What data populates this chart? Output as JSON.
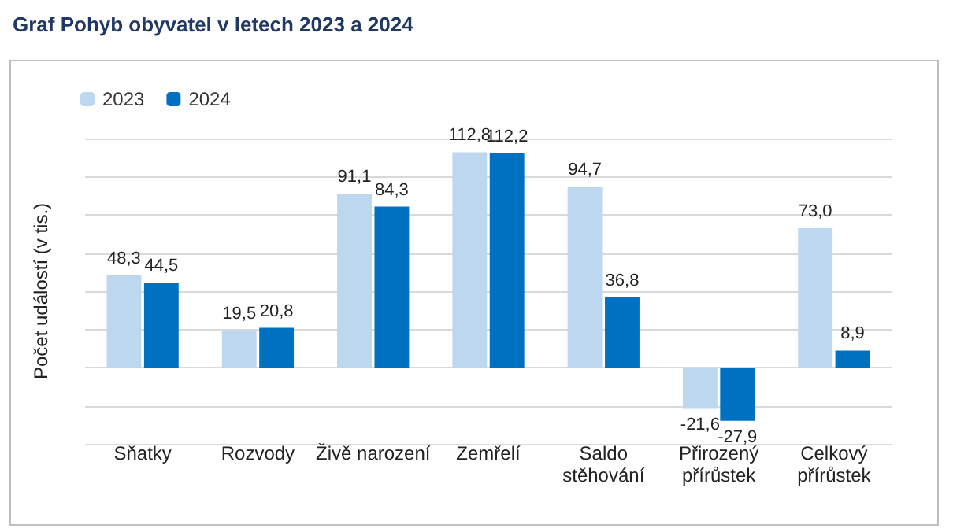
{
  "chart_data": {
    "type": "bar",
    "title": "Graf Pohyb obyvatel v letech 2023 a 2024",
    "ylabel": "Počet událostí (v tis.)",
    "categories": [
      "Sňatky",
      "Rozvody",
      "Živě narození",
      "Zemřelí",
      "Saldo\nstěhování",
      "Přirozený\npřírůstek",
      "Celkový\npřírůstek"
    ],
    "series": [
      {
        "name": "2023",
        "color": "#bdd7ee",
        "values": [
          48.3,
          19.5,
          91.1,
          112.8,
          94.7,
          -21.6,
          73.0
        ],
        "value_labels": [
          "48,3",
          "19,5",
          "91,1",
          "112,8",
          "94,7",
          "-21,6",
          "73,0"
        ]
      },
      {
        "name": "2024",
        "color": "#0070c0",
        "values": [
          44.5,
          20.8,
          84.3,
          112.2,
          36.8,
          -27.9,
          8.9
        ],
        "value_labels": [
          "44,5",
          "20,8",
          "84,3",
          "112,2",
          "36,8",
          "-27,9",
          "8,9"
        ]
      }
    ],
    "ylim": [
      -40,
      120
    ],
    "yticks": [
      {
        "value": -40,
        "label": null
      },
      {
        "value": -20,
        "label": null
      },
      {
        "value": 0,
        "label": null
      },
      {
        "value": 20,
        "label": null
      },
      {
        "value": 40,
        "label": null
      },
      {
        "value": 60,
        "label": null
      },
      {
        "value": 80,
        "label": null
      },
      {
        "value": 100,
        "label": null
      },
      {
        "value": 120,
        "label": null
      }
    ],
    "tick_labels": "x",
    "grid": "y",
    "legend": "top left"
  }
}
